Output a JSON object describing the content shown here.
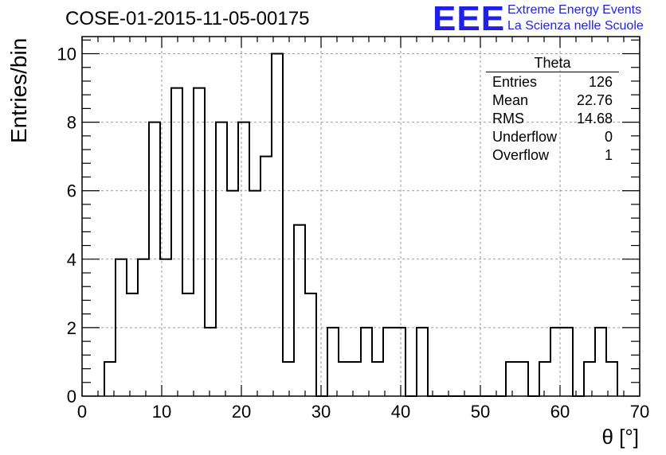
{
  "title": "COSE-01-2015-11-05-00175",
  "logo": {
    "mark": "EEE",
    "line1": "Extreme Energy Events",
    "line2": "La Scienza nelle Scuole",
    "color": "#1f1fe6"
  },
  "stats": {
    "name": "Theta",
    "rows": [
      {
        "label": "Entries",
        "value": "126"
      },
      {
        "label": "Mean",
        "value": "22.76"
      },
      {
        "label": "RMS",
        "value": "14.68"
      },
      {
        "label": "Underflow",
        "value": "0"
      },
      {
        "label": "Overflow",
        "value": "1"
      }
    ]
  },
  "chart_data": {
    "type": "bar",
    "style": "step-histogram",
    "title": "COSE-01-2015-11-05-00175",
    "xlabel": "θ [°]",
    "ylabel": "Entries/bin",
    "xlim": [
      0,
      70
    ],
    "ylim": [
      0,
      10.5
    ],
    "grid": true,
    "xticks": [
      0,
      10,
      20,
      30,
      40,
      50,
      60,
      70
    ],
    "yticks": [
      0,
      2,
      4,
      6,
      8,
      10
    ],
    "bin_width": 1.4,
    "bin_low_edges": [
      2.8,
      4.2,
      5.6,
      7.0,
      8.4,
      9.8,
      11.2,
      12.6,
      14.0,
      15.4,
      16.8,
      18.2,
      19.6,
      21.0,
      22.4,
      23.8,
      25.2,
      26.6,
      28.0,
      29.4,
      30.8,
      32.2,
      33.6,
      35.0,
      36.4,
      37.8,
      39.2,
      40.6,
      42.0,
      43.4,
      44.8,
      46.2,
      47.6,
      49.0,
      50.4,
      51.8,
      53.2,
      54.6,
      56.0,
      57.4,
      58.8,
      60.2,
      61.6,
      63.0,
      64.4,
      65.8
    ],
    "values": [
      1,
      4,
      3,
      4,
      8,
      4,
      9,
      3,
      9,
      2,
      8,
      6,
      8,
      6,
      7,
      10,
      1,
      5,
      3,
      0,
      2,
      1,
      1,
      2,
      1,
      2,
      2,
      0,
      2,
      0,
      0,
      0,
      0,
      0,
      0,
      0,
      1,
      1,
      0,
      1,
      2,
      2,
      0,
      1,
      2,
      1
    ]
  }
}
